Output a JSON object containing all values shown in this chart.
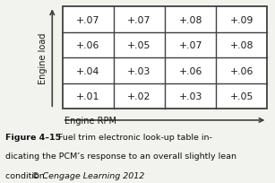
{
  "table_data": [
    [
      "+.07",
      "+.07",
      "+.08",
      "+.09"
    ],
    [
      "+.06",
      "+.05",
      "+.07",
      "+.08"
    ],
    [
      "+.04",
      "+.03",
      "+.06",
      "+.06"
    ],
    [
      "+.01",
      "+.02",
      "+.03",
      "+.05"
    ]
  ],
  "xlabel": "Engine RPM",
  "ylabel": "Engine load",
  "caption_bold": "Figure 4–15",
  "caption_line1": "  Fuel trim electronic look-up table in-",
  "caption_line2": "dicating the PCM’s response to an overall slightly lean",
  "caption_line3": "condition. ",
  "caption_italic": "© Cengage Learning 2012",
  "bg_color": "#f2f2ee",
  "cell_color": "#ffffff",
  "border_color": "#404040",
  "text_color": "#1a1a1a",
  "caption_color": "#111111",
  "arrow_color": "#404040"
}
